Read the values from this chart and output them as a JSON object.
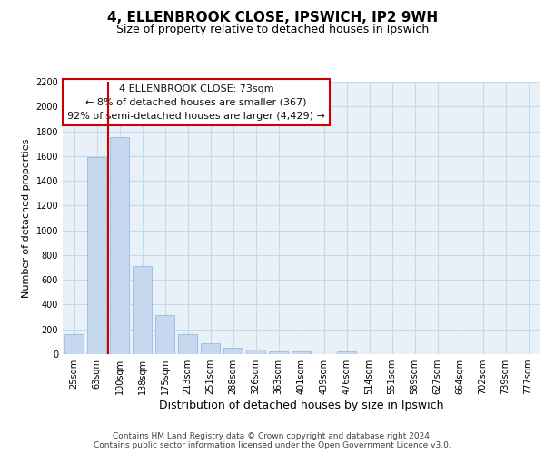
{
  "title": "4, ELLENBROOK CLOSE, IPSWICH, IP2 9WH",
  "subtitle": "Size of property relative to detached houses in Ipswich",
  "xlabel": "Distribution of detached houses by size in Ipswich",
  "ylabel": "Number of detached properties",
  "categories": [
    "25sqm",
    "63sqm",
    "100sqm",
    "138sqm",
    "175sqm",
    "213sqm",
    "251sqm",
    "288sqm",
    "326sqm",
    "363sqm",
    "401sqm",
    "439sqm",
    "476sqm",
    "514sqm",
    "551sqm",
    "589sqm",
    "627sqm",
    "664sqm",
    "702sqm",
    "739sqm",
    "777sqm"
  ],
  "values": [
    160,
    1590,
    1750,
    710,
    315,
    160,
    90,
    55,
    35,
    25,
    20,
    0,
    20,
    0,
    0,
    0,
    0,
    0,
    0,
    0,
    0
  ],
  "bar_color": "#c5d8ef",
  "bar_edge_color": "#8ab4d8",
  "grid_color": "#c8d8e8",
  "background_color": "#e8f0f8",
  "vline_position": 1.5,
  "vline_color": "#cc0000",
  "annotation_line1": "4 ELLENBROOK CLOSE: 73sqm",
  "annotation_line2": "← 8% of detached houses are smaller (367)",
  "annotation_line3": "92% of semi-detached houses are larger (4,429) →",
  "annotation_box_edgecolor": "#cc0000",
  "ylim": [
    0,
    2200
  ],
  "yticks": [
    0,
    200,
    400,
    600,
    800,
    1000,
    1200,
    1400,
    1600,
    1800,
    2000,
    2200
  ],
  "footer_line1": "Contains HM Land Registry data © Crown copyright and database right 2024.",
  "footer_line2": "Contains public sector information licensed under the Open Government Licence v3.0.",
  "title_fontsize": 11,
  "subtitle_fontsize": 9,
  "xlabel_fontsize": 9,
  "ylabel_fontsize": 8,
  "tick_fontsize": 7,
  "footer_fontsize": 6.5,
  "annot_fontsize": 8
}
